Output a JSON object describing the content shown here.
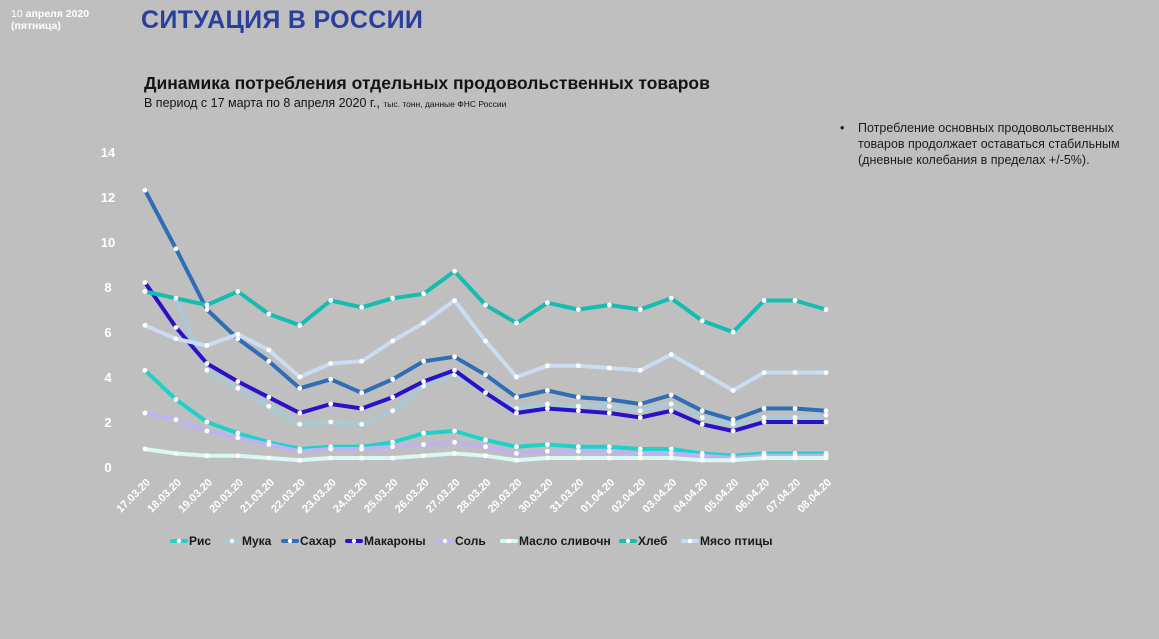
{
  "header": {
    "date_day": "10",
    "date_month": "апреля 2020",
    "date_weekday": "(пятница)",
    "headline": "СИТУАЦИЯ В РОССИИ"
  },
  "note": {
    "text": "Потребление основных продовольственных товаров продолжает оставаться стабильным (дневные колебания в пределах +/-5%)."
  },
  "chart_data": {
    "type": "line",
    "title": "Динамика потребления отдельных продовольственных товаров",
    "subtitle_main": "В период с 17 марта по 8 апреля 2020 г.,",
    "subtitle_small": "тыс. тонн, данные ФНС России",
    "ylim": [
      0,
      14
    ],
    "yticks": [
      0,
      2,
      4,
      6,
      8,
      10,
      12,
      14
    ],
    "grid": false,
    "legend_position": "bottom",
    "categories": [
      "17.03.20",
      "18.03.20",
      "19.03.20",
      "20.03.20",
      "21.03.20",
      "22.03.20",
      "23.03.20",
      "24.03.20",
      "25.03.20",
      "26.03.20",
      "27.03.20",
      "28.03.20",
      "29.03.20",
      "30.03.20",
      "31.03.20",
      "01.04.20",
      "02.04.20",
      "03.04.20",
      "04.04.20",
      "05.04.20",
      "06.04.20",
      "07.04.20",
      "08.04.20"
    ],
    "series": [
      {
        "name": "Рис",
        "color": "#1fd1c9",
        "values": [
          4.3,
          3.0,
          2.0,
          1.5,
          1.1,
          0.8,
          0.9,
          0.9,
          1.1,
          1.5,
          1.6,
          1.2,
          0.9,
          1.0,
          0.9,
          0.9,
          0.8,
          0.8,
          0.6,
          0.5,
          0.6,
          0.6,
          0.6
        ]
      },
      {
        "name": "Мука",
        "color": "#a6cbd6",
        "values": [
          7.8,
          7.5,
          4.3,
          3.5,
          2.7,
          1.9,
          2.0,
          1.9,
          2.5,
          3.6,
          4.1,
          3.3,
          2.6,
          2.8,
          2.7,
          2.7,
          2.5,
          2.8,
          2.2,
          1.9,
          2.2,
          2.2,
          2.3
        ]
      },
      {
        "name": "Сахар",
        "color": "#2f6db5",
        "values": [
          12.3,
          9.7,
          7.0,
          5.7,
          4.7,
          3.5,
          3.9,
          3.3,
          3.9,
          4.7,
          4.9,
          4.1,
          3.1,
          3.4,
          3.1,
          3.0,
          2.8,
          3.2,
          2.5,
          2.1,
          2.6,
          2.6,
          2.5
        ]
      },
      {
        "name": "Макароны",
        "color": "#2a10c8",
        "values": [
          8.2,
          6.2,
          4.6,
          3.8,
          3.1,
          2.4,
          2.8,
          2.6,
          3.1,
          3.8,
          4.3,
          3.3,
          2.4,
          2.6,
          2.5,
          2.4,
          2.2,
          2.5,
          1.9,
          1.6,
          2.0,
          2.0,
          2.0
        ]
      },
      {
        "name": "Соль",
        "color": "#c0b2f0",
        "values": [
          2.4,
          2.1,
          1.6,
          1.3,
          1.0,
          0.7,
          0.8,
          0.8,
          0.9,
          1.0,
          1.1,
          0.9,
          0.6,
          0.7,
          0.7,
          0.7,
          0.6,
          0.6,
          0.5,
          0.4,
          0.5,
          0.5,
          0.5
        ]
      },
      {
        "name": "Масло сливочн",
        "color": "#d9f7f5",
        "values": [
          0.8,
          0.6,
          0.5,
          0.5,
          0.4,
          0.3,
          0.4,
          0.4,
          0.4,
          0.5,
          0.6,
          0.5,
          0.3,
          0.4,
          0.4,
          0.4,
          0.4,
          0.4,
          0.3,
          0.3,
          0.4,
          0.4,
          0.4
        ]
      },
      {
        "name": "Хлеб",
        "color": "#15bcb0",
        "values": [
          7.8,
          7.5,
          7.2,
          7.8,
          6.8,
          6.3,
          7.4,
          7.1,
          7.5,
          7.7,
          8.7,
          7.2,
          6.4,
          7.3,
          7.0,
          7.2,
          7.0,
          7.5,
          6.5,
          6.0,
          7.4,
          7.4,
          7.0
        ]
      },
      {
        "name": "Мясо птицы",
        "color": "#c9dcf3",
        "values": [
          6.3,
          5.7,
          5.4,
          5.9,
          5.2,
          4.0,
          4.6,
          4.7,
          5.6,
          6.4,
          7.4,
          5.6,
          4.0,
          4.5,
          4.5,
          4.4,
          4.3,
          5.0,
          4.2,
          3.4,
          4.2,
          4.2,
          4.2
        ]
      }
    ]
  }
}
